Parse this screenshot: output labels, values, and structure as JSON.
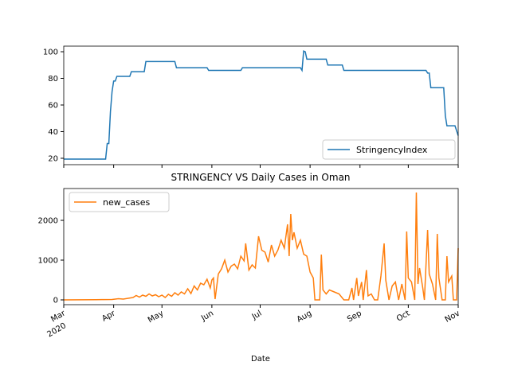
{
  "chart_data": [
    {
      "type": "line",
      "x": [
        0,
        26,
        27,
        28,
        29,
        30,
        31,
        32,
        33,
        41,
        42,
        50,
        51,
        69,
        70,
        89,
        90,
        110,
        111,
        147,
        148,
        149,
        150,
        151,
        163,
        164,
        173,
        174,
        225,
        226,
        227,
        228,
        236,
        237,
        238,
        243,
        245
      ],
      "series": [
        {
          "name": "StringencyIndex",
          "color": "#1f77b4",
          "values": [
            19.4,
            19.4,
            31,
            31,
            55,
            70,
            78,
            78,
            81.5,
            81.5,
            85,
            85,
            92.6,
            92.6,
            88,
            88,
            86,
            86,
            88,
            88,
            86,
            100.5,
            100,
            94.4,
            94.4,
            90,
            90,
            86,
            86,
            84,
            84,
            73,
            73,
            52,
            44.4,
            44.4,
            37
          ]
        }
      ],
      "xlim": [
        0,
        245
      ],
      "ylim": [
        15.2,
        104.2
      ],
      "yticks": [
        20,
        40,
        60,
        80,
        100
      ],
      "legend": "lower right"
    },
    {
      "type": "line",
      "title": "STRINGENCY VS Daily Cases in Oman",
      "xlabel": "Date",
      "x": [
        0,
        10,
        20,
        25,
        30,
        31,
        34,
        37,
        40,
        43,
        45,
        47,
        49,
        51,
        53,
        55,
        57,
        59,
        61,
        63,
        65,
        67,
        69,
        71,
        73,
        75,
        77,
        79,
        81,
        83,
        85,
        87,
        89,
        91,
        92,
        93,
        94,
        96,
        98,
        100,
        102,
        104,
        106,
        108,
        110,
        112,
        113,
        115,
        117,
        119,
        121,
        123,
        125,
        127,
        129,
        131,
        133,
        135,
        137,
        139,
        140,
        141,
        142,
        143,
        145,
        147,
        149,
        151,
        153,
        155,
        156,
        159,
        160,
        161,
        163,
        165,
        168,
        171,
        174,
        177,
        179,
        180,
        182,
        183,
        185,
        186,
        188,
        189,
        191,
        193,
        195,
        197,
        199,
        200,
        202,
        204,
        206,
        208,
        210,
        212,
        213,
        214,
        216,
        218,
        219,
        220,
        221,
        223,
        224,
        226,
        227,
        229,
        231,
        232,
        233,
        235,
        237,
        238,
        239,
        241,
        242,
        244,
        245
      ],
      "series": [
        {
          "name": "new_cases",
          "color": "#ff7f0e",
          "values": [
            0,
            2,
            5,
            8,
            10,
            15,
            30,
            20,
            40,
            60,
            110,
            70,
            120,
            90,
            150,
            100,
            130,
            80,
            120,
            60,
            140,
            90,
            180,
            120,
            200,
            150,
            280,
            160,
            350,
            250,
            420,
            380,
            520,
            300,
            500,
            550,
            20,
            650,
            780,
            1000,
            700,
            850,
            900,
            780,
            1100,
            980,
            1420,
            750,
            880,
            800,
            1600,
            1250,
            1200,
            950,
            1380,
            1100,
            1250,
            1500,
            1300,
            1900,
            1100,
            2160,
            1500,
            1700,
            1300,
            1500,
            1150,
            1100,
            700,
            550,
            0,
            0,
            1140,
            250,
            150,
            250,
            200,
            150,
            0,
            0,
            300,
            0,
            550,
            100,
            450,
            0,
            750,
            100,
            150,
            0,
            0,
            600,
            1420,
            500,
            0,
            350,
            450,
            0,
            400,
            0,
            1720,
            550,
            450,
            0,
            2700,
            400,
            800,
            300,
            0,
            1760,
            650,
            400,
            0,
            1660,
            550,
            0,
            0,
            1100,
            450,
            600,
            0,
            0,
            1300
          ]
        }
      ],
      "xlim": [
        0,
        245
      ],
      "ylim": [
        -120,
        2800
      ],
      "yticks": [
        0,
        1000,
        2000
      ],
      "xticks": [
        {
          "value": 0,
          "label": "Mar"
        },
        {
          "value": 31,
          "label": "Apr"
        },
        {
          "value": 61,
          "label": "May"
        },
        {
          "value": 92,
          "label": "Jun"
        },
        {
          "value": 122,
          "label": "Jul"
        },
        {
          "value": 153,
          "label": "Aug"
        },
        {
          "value": 184,
          "label": "Sep"
        },
        {
          "value": 214,
          "label": "Oct"
        },
        {
          "value": 245,
          "label": "Nov"
        }
      ],
      "x_year": "2020",
      "legend": "upper left"
    }
  ]
}
